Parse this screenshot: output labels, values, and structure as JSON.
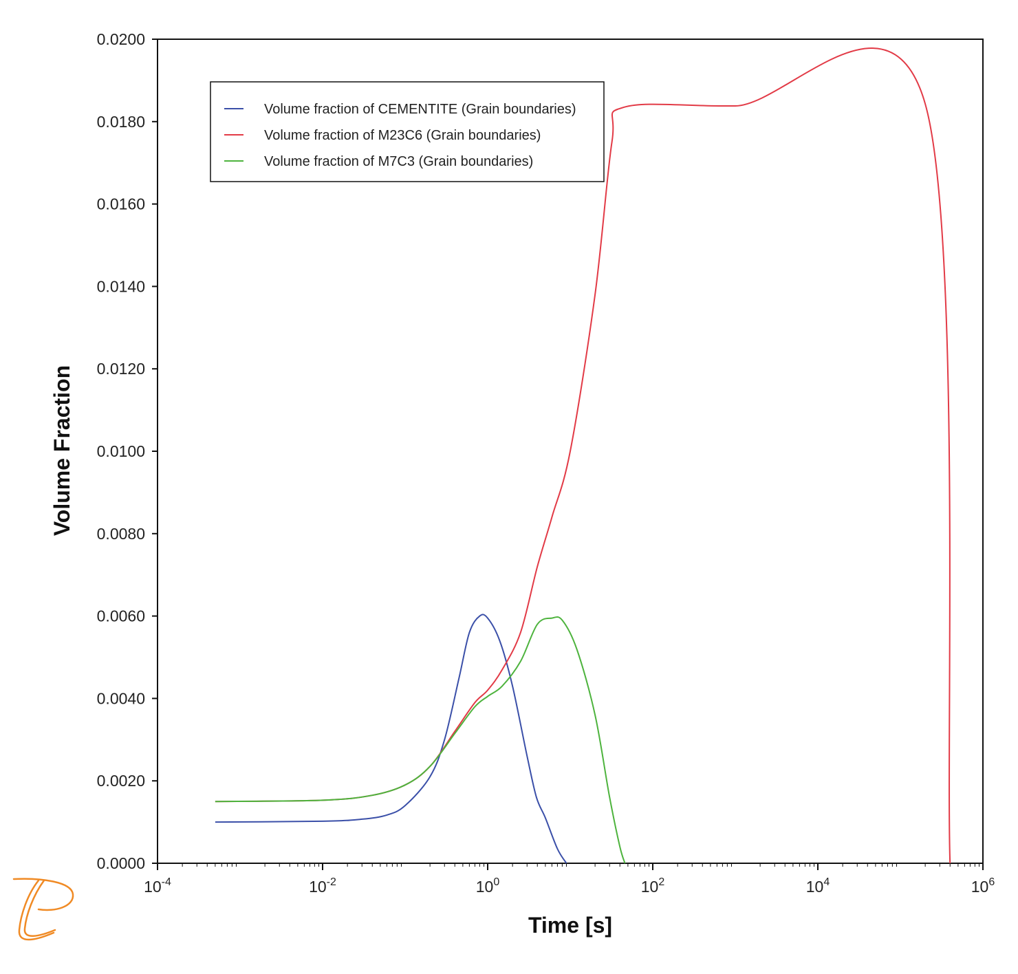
{
  "chart_data": {
    "type": "line",
    "xlabel": "Time [s]",
    "ylabel": "Volume Fraction",
    "x_scale": "log",
    "xlim": [
      0.0001,
      1000000
    ],
    "ylim": [
      0.0,
      0.02
    ],
    "grid": false,
    "legend_position": "top-left",
    "x_ticks": [
      {
        "value": 0.0001,
        "base": "10",
        "exp": "-4"
      },
      {
        "value": 0.01,
        "base": "10",
        "exp": "-2"
      },
      {
        "value": 1,
        "base": "10",
        "exp": "0"
      },
      {
        "value": 100,
        "base": "10",
        "exp": "2"
      },
      {
        "value": 10000,
        "base": "10",
        "exp": "4"
      },
      {
        "value": 1000000,
        "base": "10",
        "exp": "6"
      }
    ],
    "y_ticks": [
      {
        "value": 0.0,
        "label": "0.0000"
      },
      {
        "value": 0.002,
        "label": "0.0020"
      },
      {
        "value": 0.004,
        "label": "0.0040"
      },
      {
        "value": 0.006,
        "label": "0.0060"
      },
      {
        "value": 0.008,
        "label": "0.0080"
      },
      {
        "value": 0.01,
        "label": "0.0100"
      },
      {
        "value": 0.012,
        "label": "0.0120"
      },
      {
        "value": 0.014,
        "label": "0.0140"
      },
      {
        "value": 0.016,
        "label": "0.0160"
      },
      {
        "value": 0.018,
        "label": "0.0180"
      },
      {
        "value": 0.02,
        "label": "0.0200"
      }
    ],
    "series": [
      {
        "name": "Volume fraction of CEMENTITE (Grain boundaries)",
        "color": "#3a4fa8",
        "points": [
          [
            0.0005,
            0.001
          ],
          [
            0.01,
            0.00102
          ],
          [
            0.03,
            0.00107
          ],
          [
            0.06,
            0.00117
          ],
          [
            0.1,
            0.0014
          ],
          [
            0.2,
            0.0021
          ],
          [
            0.3,
            0.003
          ],
          [
            0.45,
            0.0045
          ],
          [
            0.6,
            0.0056
          ],
          [
            0.8,
            0.006
          ],
          [
            1.0,
            0.00595
          ],
          [
            1.4,
            0.0054
          ],
          [
            2.0,
            0.0043
          ],
          [
            3.0,
            0.0026
          ],
          [
            3.9,
            0.0016
          ],
          [
            5.0,
            0.0011
          ],
          [
            7.0,
            0.00035
          ],
          [
            9.0,
            0.0
          ]
        ]
      },
      {
        "name": "Volume fraction of M23C6 (Grain boundaries)",
        "color": "#e23a46",
        "points": [
          [
            0.0005,
            0.0015
          ],
          [
            0.01,
            0.00153
          ],
          [
            0.04,
            0.00165
          ],
          [
            0.1,
            0.0019
          ],
          [
            0.2,
            0.00235
          ],
          [
            0.4,
            0.0032
          ],
          [
            0.7,
            0.0039
          ],
          [
            1.0,
            0.0042
          ],
          [
            1.5,
            0.0047
          ],
          [
            2.5,
            0.0056
          ],
          [
            4.0,
            0.0072
          ],
          [
            6.0,
            0.0084
          ],
          [
            10.0,
            0.01
          ],
          [
            20.0,
            0.0138
          ],
          [
            32.0,
            0.0175
          ],
          [
            45.0,
            0.01835
          ],
          [
            1000,
            0.01838
          ],
          [
            200000,
            0.01843
          ],
          [
            400000,
            0.0
          ]
        ]
      },
      {
        "name": "Volume fraction of M7C3 (Grain boundaries)",
        "color": "#4db33d",
        "points": [
          [
            0.0005,
            0.0015
          ],
          [
            0.01,
            0.00153
          ],
          [
            0.04,
            0.00165
          ],
          [
            0.1,
            0.0019
          ],
          [
            0.2,
            0.00235
          ],
          [
            0.4,
            0.00315
          ],
          [
            0.7,
            0.0038
          ],
          [
            1.0,
            0.00405
          ],
          [
            1.5,
            0.0043
          ],
          [
            2.5,
            0.0049
          ],
          [
            4.0,
            0.0058
          ],
          [
            6.0,
            0.00595
          ],
          [
            8.0,
            0.0059
          ],
          [
            12.0,
            0.0052
          ],
          [
            20.0,
            0.0036
          ],
          [
            30.0,
            0.0016
          ],
          [
            40.0,
            0.0004
          ],
          [
            46.0,
            0.0
          ]
        ]
      }
    ]
  }
}
